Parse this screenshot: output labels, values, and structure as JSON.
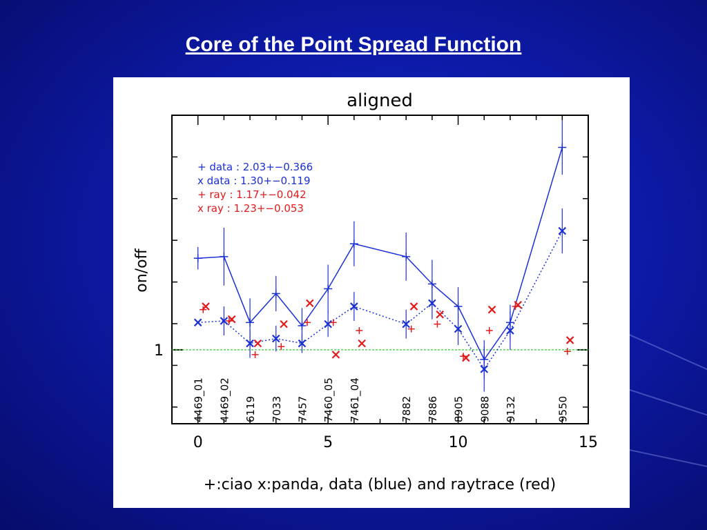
{
  "slide": {
    "title": "Core of the Point Spread Function"
  },
  "colors": {
    "data": "#1a2fd6",
    "raytrace": "#e01b1b",
    "reference_line": "#33cc33",
    "background": "#0d1aa8"
  },
  "chart_data": {
    "type": "line",
    "title": "aligned",
    "xlabel": "+:ciao x:panda, data (blue) and raytrace (red)",
    "ylabel": "on/off",
    "xlim": [
      -1.0,
      15.0
    ],
    "ylim": [
      0.77,
      1.73
    ],
    "x_ticks": [
      0,
      5,
      10,
      15
    ],
    "y_ticks": [
      1
    ],
    "reference_line_y": 1,
    "legend_placement": "top-left",
    "legend": [
      {
        "marker": "+",
        "text": "+ data : 2.03+−0.366",
        "color": "#1a2fd6"
      },
      {
        "marker": "x",
        "text": "x data : 1.30+−0.119",
        "color": "#1a2fd6"
      },
      {
        "marker": "+",
        "text": "+ ray : 1.17+−0.042",
        "color": "#e01b1b"
      },
      {
        "marker": "x",
        "text": "x ray : 1.23+−0.053",
        "color": "#e01b1b"
      }
    ],
    "obsids": [
      {
        "label": "4469_01",
        "x": 0
      },
      {
        "label": "4469_02",
        "x": 1
      },
      {
        "label": "6119",
        "x": 2
      },
      {
        "label": "7033",
        "x": 3
      },
      {
        "label": "7457",
        "x": 4
      },
      {
        "label": "7460_05",
        "x": 5
      },
      {
        "label": "7461_04",
        "x": 6
      },
      {
        "label": "7882",
        "x": 8
      },
      {
        "label": "7886",
        "x": 9
      },
      {
        "label": "8905",
        "x": 10
      },
      {
        "label": "9088",
        "x": 11
      },
      {
        "label": "9132",
        "x": 12
      },
      {
        "label": "9550",
        "x": 14
      }
    ],
    "series": [
      {
        "marker": "+",
        "color": "#1a2fd6",
        "line": "solid",
        "points": [
          {
            "x": 0,
            "y": 1.285,
            "err": 0.035
          },
          {
            "x": 1,
            "y": 1.29,
            "err": 0.09
          },
          {
            "x": 2,
            "y": 1.085,
            "err": 0.075
          },
          {
            "x": 3,
            "y": 1.175,
            "err": 0.055
          },
          {
            "x": 4,
            "y": 1.075,
            "err": 0.055
          },
          {
            "x": 5,
            "y": 1.19,
            "err": 0.075
          },
          {
            "x": 6,
            "y": 1.33,
            "err": 0.07
          },
          {
            "x": 8,
            "y": 1.29,
            "err": 0.075
          },
          {
            "x": 9,
            "y": 1.205,
            "err": 0.075
          },
          {
            "x": 10,
            "y": 1.135,
            "err": 0.06
          },
          {
            "x": 11,
            "y": 0.97,
            "err": 0.06
          },
          {
            "x": 12,
            "y": 1.085,
            "err": 0.055
          },
          {
            "x": 14,
            "y": 1.63,
            "err": 0.085
          }
        ]
      },
      {
        "marker": "x",
        "color": "#1a2fd6",
        "line": "dotted",
        "points": [
          {
            "x": 0,
            "y": 1.085,
            "err": 0.0
          },
          {
            "x": 1,
            "y": 1.09,
            "err": 0.045
          },
          {
            "x": 2,
            "y": 1.02,
            "err": 0.045
          },
          {
            "x": 3,
            "y": 1.035,
            "err": 0.04
          },
          {
            "x": 4,
            "y": 1.02,
            "err": 0.03
          },
          {
            "x": 5,
            "y": 1.08,
            "err": 0.04
          },
          {
            "x": 6,
            "y": 1.135,
            "err": 0.045
          },
          {
            "x": 8,
            "y": 1.08,
            "err": 0.045
          },
          {
            "x": 9,
            "y": 1.145,
            "err": 0.05
          },
          {
            "x": 10,
            "y": 1.065,
            "err": 0.05
          },
          {
            "x": 11,
            "y": 0.94,
            "err": 0.07
          },
          {
            "x": 12,
            "y": 1.06,
            "err": 0.06
          },
          {
            "x": 14,
            "y": 1.37,
            "err": 0.07
          }
        ]
      },
      {
        "marker": "+",
        "color": "#e01b1b",
        "line": "none",
        "points": [
          {
            "x": 0.2,
            "y": 1.125
          },
          {
            "x": 1.2,
            "y": 1.09
          },
          {
            "x": 2.2,
            "y": 0.985
          },
          {
            "x": 3.2,
            "y": 1.01
          },
          {
            "x": 4.2,
            "y": 1.085
          },
          {
            "x": 5.2,
            "y": 1.085
          },
          {
            "x": 6.2,
            "y": 1.06
          },
          {
            "x": 8.2,
            "y": 1.065
          },
          {
            "x": 9.2,
            "y": 1.08
          },
          {
            "x": 10.2,
            "y": 0.98
          },
          {
            "x": 11.2,
            "y": 1.06
          },
          {
            "x": 12.2,
            "y": 1.135
          },
          {
            "x": 14.2,
            "y": 0.995
          }
        ]
      },
      {
        "marker": "x",
        "color": "#e01b1b",
        "line": "none",
        "points": [
          {
            "x": 0.3,
            "y": 1.135
          },
          {
            "x": 1.3,
            "y": 1.095
          },
          {
            "x": 2.3,
            "y": 1.02
          },
          {
            "x": 3.3,
            "y": 1.08
          },
          {
            "x": 4.3,
            "y": 1.145
          },
          {
            "x": 5.3,
            "y": 0.985
          },
          {
            "x": 6.3,
            "y": 1.02
          },
          {
            "x": 8.3,
            "y": 1.135
          },
          {
            "x": 9.3,
            "y": 1.11
          },
          {
            "x": 10.3,
            "y": 0.975
          },
          {
            "x": 11.3,
            "y": 1.125
          },
          {
            "x": 12.3,
            "y": 1.14
          },
          {
            "x": 14.3,
            "y": 1.03
          }
        ]
      }
    ]
  }
}
